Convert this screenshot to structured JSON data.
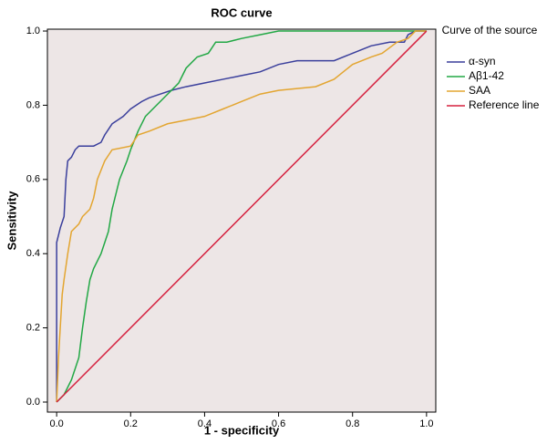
{
  "chart_data": {
    "type": "line",
    "title": "ROC curve",
    "x_label": "1 - specificity",
    "y_label": "Sensitivity",
    "legend_title": "Curve of the source",
    "legend": "right",
    "xlim": [
      -0.025,
      1.025
    ],
    "ylim": [
      -0.027,
      1.005
    ],
    "xticks": [
      {
        "value": 0,
        "label": "0.0"
      },
      {
        "value": 0.2,
        "label": "0.2"
      },
      {
        "value": 0.4,
        "label": "0.4"
      },
      {
        "value": 0.6,
        "label": "0.6"
      },
      {
        "value": 0.8,
        "label": "0.8"
      },
      {
        "value": 1,
        "label": "1.0"
      }
    ],
    "yticks": [
      {
        "value": 0,
        "label": "0.0"
      },
      {
        "value": 0.2,
        "label": "0.2"
      },
      {
        "value": 0.4,
        "label": "0.4"
      },
      {
        "value": 0.6,
        "label": "0.6"
      },
      {
        "value": 0.8,
        "label": "0.8"
      },
      {
        "value": 1,
        "label": "1.0"
      }
    ],
    "series": [
      {
        "name": "α-syn",
        "color": "#3a3f9c",
        "x": [
          0,
          0,
          0.01,
          0.02,
          0.025,
          0.03,
          0.04,
          0.05,
          0.06,
          0.1,
          0.12,
          0.13,
          0.15,
          0.18,
          0.2,
          0.23,
          0.25,
          0.28,
          0.31,
          0.35,
          0.4,
          0.45,
          0.5,
          0.55,
          0.6,
          0.65,
          0.75,
          0.8,
          0.85,
          0.9,
          0.94,
          0.95,
          0.97,
          1
        ],
        "values": [
          0,
          0.43,
          0.47,
          0.5,
          0.6,
          0.65,
          0.66,
          0.68,
          0.69,
          0.69,
          0.7,
          0.72,
          0.75,
          0.77,
          0.79,
          0.81,
          0.82,
          0.83,
          0.84,
          0.85,
          0.86,
          0.87,
          0.88,
          0.89,
          0.91,
          0.92,
          0.92,
          0.94,
          0.96,
          0.97,
          0.97,
          0.99,
          1,
          1
        ]
      },
      {
        "name": "Aβ1-42",
        "color": "#22a845",
        "x": [
          0,
          0.02,
          0.04,
          0.06,
          0.07,
          0.08,
          0.09,
          0.1,
          0.12,
          0.14,
          0.15,
          0.17,
          0.19,
          0.2,
          0.22,
          0.24,
          0.26,
          0.28,
          0.3,
          0.33,
          0.35,
          0.38,
          0.41,
          0.43,
          0.46,
          0.5,
          0.55,
          0.6,
          1
        ],
        "values": [
          0,
          0.02,
          0.06,
          0.12,
          0.2,
          0.27,
          0.33,
          0.36,
          0.4,
          0.46,
          0.52,
          0.6,
          0.65,
          0.68,
          0.73,
          0.77,
          0.79,
          0.81,
          0.83,
          0.86,
          0.9,
          0.93,
          0.94,
          0.97,
          0.97,
          0.98,
          0.99,
          1,
          1
        ]
      },
      {
        "name": "SAA",
        "color": "#e3a530",
        "x": [
          0,
          0.005,
          0.015,
          0.02,
          0.03,
          0.04,
          0.06,
          0.07,
          0.09,
          0.1,
          0.11,
          0.13,
          0.15,
          0.2,
          0.22,
          0.25,
          0.3,
          0.35,
          0.4,
          0.45,
          0.5,
          0.55,
          0.6,
          0.7,
          0.75,
          0.8,
          0.85,
          0.88,
          0.92,
          0.95,
          0.97,
          1
        ],
        "values": [
          0,
          0.12,
          0.29,
          0.33,
          0.4,
          0.46,
          0.48,
          0.5,
          0.52,
          0.55,
          0.6,
          0.65,
          0.68,
          0.69,
          0.72,
          0.73,
          0.75,
          0.76,
          0.77,
          0.79,
          0.81,
          0.83,
          0.84,
          0.85,
          0.87,
          0.91,
          0.93,
          0.94,
          0.97,
          0.98,
          1,
          1
        ]
      },
      {
        "name": "Reference line",
        "color": "#d5203e",
        "x": [
          0,
          1
        ],
        "values": [
          0,
          1
        ]
      }
    ]
  }
}
